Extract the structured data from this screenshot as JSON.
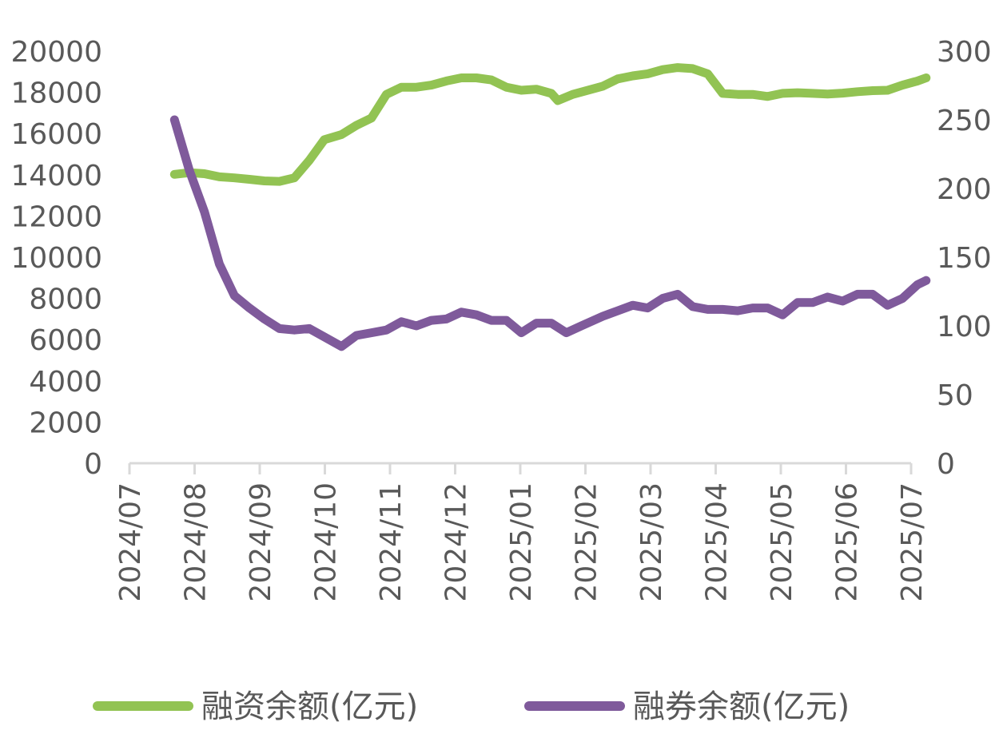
{
  "chart_data": {
    "type": "line",
    "x_ticks": [
      "2024/07",
      "2024/08",
      "2024/09",
      "2024/10",
      "2024/11",
      "2024/12",
      "2025/01",
      "2025/02",
      "2025/03",
      "2025/04",
      "2025/05",
      "2025/06",
      "2025/07"
    ],
    "y_left": {
      "ticks": [
        "0",
        "2000",
        "4000",
        "6000",
        "8000",
        "10000",
        "12000",
        "14000",
        "16000",
        "18000",
        "20000"
      ],
      "range": [
        0,
        20000
      ]
    },
    "y_right": {
      "ticks": [
        "0",
        "50",
        "100",
        "150",
        "200",
        "250",
        "300"
      ],
      "range": [
        0,
        300
      ]
    },
    "grid": false,
    "legend_position": "bottom",
    "series": [
      {
        "name": "融资余额(亿元)",
        "axis": "left",
        "color": "#92c353",
        "points": [
          [
            "2024-07-22",
            14020
          ],
          [
            "2024-07-29",
            14100
          ],
          [
            "2024-08-05",
            14050
          ],
          [
            "2024-08-12",
            13900
          ],
          [
            "2024-08-19",
            13850
          ],
          [
            "2024-08-26",
            13780
          ],
          [
            "2024-09-02",
            13700
          ],
          [
            "2024-09-09",
            13680
          ],
          [
            "2024-09-16",
            13850
          ],
          [
            "2024-09-23",
            14700
          ],
          [
            "2024-09-30",
            15700
          ],
          [
            "2024-10-08",
            15950
          ],
          [
            "2024-10-15",
            16400
          ],
          [
            "2024-10-22",
            16750
          ],
          [
            "2024-10-29",
            17900
          ],
          [
            "2024-11-05",
            18250
          ],
          [
            "2024-11-12",
            18250
          ],
          [
            "2024-11-19",
            18350
          ],
          [
            "2024-11-26",
            18550
          ],
          [
            "2024-12-03",
            18700
          ],
          [
            "2024-12-10",
            18700
          ],
          [
            "2024-12-17",
            18600
          ],
          [
            "2024-12-24",
            18250
          ],
          [
            "2024-12-31",
            18100
          ],
          [
            "2025-01-07",
            18150
          ],
          [
            "2025-01-14",
            17950
          ],
          [
            "2025-01-17",
            17600
          ],
          [
            "2025-01-24",
            17900
          ],
          [
            "2025-02-07",
            18300
          ],
          [
            "2025-02-14",
            18650
          ],
          [
            "2025-02-21",
            18800
          ],
          [
            "2025-02-28",
            18900
          ],
          [
            "2025-03-07",
            19100
          ],
          [
            "2025-03-14",
            19200
          ],
          [
            "2025-03-21",
            19150
          ],
          [
            "2025-03-28",
            18900
          ],
          [
            "2025-04-04",
            17950
          ],
          [
            "2025-04-11",
            17900
          ],
          [
            "2025-04-18",
            17900
          ],
          [
            "2025-04-25",
            17800
          ],
          [
            "2025-05-02",
            17950
          ],
          [
            "2025-05-09",
            17980
          ],
          [
            "2025-05-16",
            17950
          ],
          [
            "2025-05-23",
            17920
          ],
          [
            "2025-05-30",
            17960
          ],
          [
            "2025-06-06",
            18030
          ],
          [
            "2025-06-13",
            18080
          ],
          [
            "2025-06-20",
            18100
          ],
          [
            "2025-06-27",
            18350
          ],
          [
            "2025-07-04",
            18550
          ],
          [
            "2025-07-08",
            18700
          ]
        ]
      },
      {
        "name": "融券余额(亿元)",
        "axis": "right",
        "color": "#7f5a9b",
        "points": [
          [
            "2024-07-22",
            250
          ],
          [
            "2024-07-29",
            213
          ],
          [
            "2024-08-05",
            183
          ],
          [
            "2024-08-12",
            145
          ],
          [
            "2024-08-19",
            122
          ],
          [
            "2024-08-26",
            113
          ],
          [
            "2024-09-02",
            105
          ],
          [
            "2024-09-09",
            98
          ],
          [
            "2024-09-16",
            97
          ],
          [
            "2024-09-23",
            98
          ],
          [
            "2024-09-30",
            92
          ],
          [
            "2024-10-08",
            85
          ],
          [
            "2024-10-15",
            93
          ],
          [
            "2024-10-22",
            95
          ],
          [
            "2024-10-29",
            97
          ],
          [
            "2024-11-05",
            103
          ],
          [
            "2024-11-12",
            100
          ],
          [
            "2024-11-19",
            104
          ],
          [
            "2024-11-26",
            105
          ],
          [
            "2024-12-03",
            110
          ],
          [
            "2024-12-10",
            108
          ],
          [
            "2024-12-17",
            104
          ],
          [
            "2024-12-24",
            104
          ],
          [
            "2024-12-31",
            95
          ],
          [
            "2025-01-07",
            102
          ],
          [
            "2025-01-14",
            102
          ],
          [
            "2025-01-21",
            95
          ],
          [
            "2025-01-28",
            100
          ],
          [
            "2025-02-07",
            107
          ],
          [
            "2025-02-14",
            111
          ],
          [
            "2025-02-21",
            115
          ],
          [
            "2025-02-28",
            113
          ],
          [
            "2025-03-07",
            120
          ],
          [
            "2025-03-14",
            123
          ],
          [
            "2025-03-21",
            114
          ],
          [
            "2025-03-28",
            112
          ],
          [
            "2025-04-04",
            112
          ],
          [
            "2025-04-11",
            111
          ],
          [
            "2025-04-18",
            113
          ],
          [
            "2025-04-25",
            113
          ],
          [
            "2025-05-02",
            108
          ],
          [
            "2025-05-09",
            117
          ],
          [
            "2025-05-16",
            117
          ],
          [
            "2025-05-23",
            121
          ],
          [
            "2025-05-30",
            118
          ],
          [
            "2025-06-06",
            123
          ],
          [
            "2025-06-13",
            123
          ],
          [
            "2025-06-20",
            115
          ],
          [
            "2025-06-27",
            120
          ],
          [
            "2025-07-04",
            130
          ],
          [
            "2025-07-08",
            133
          ]
        ]
      }
    ]
  }
}
